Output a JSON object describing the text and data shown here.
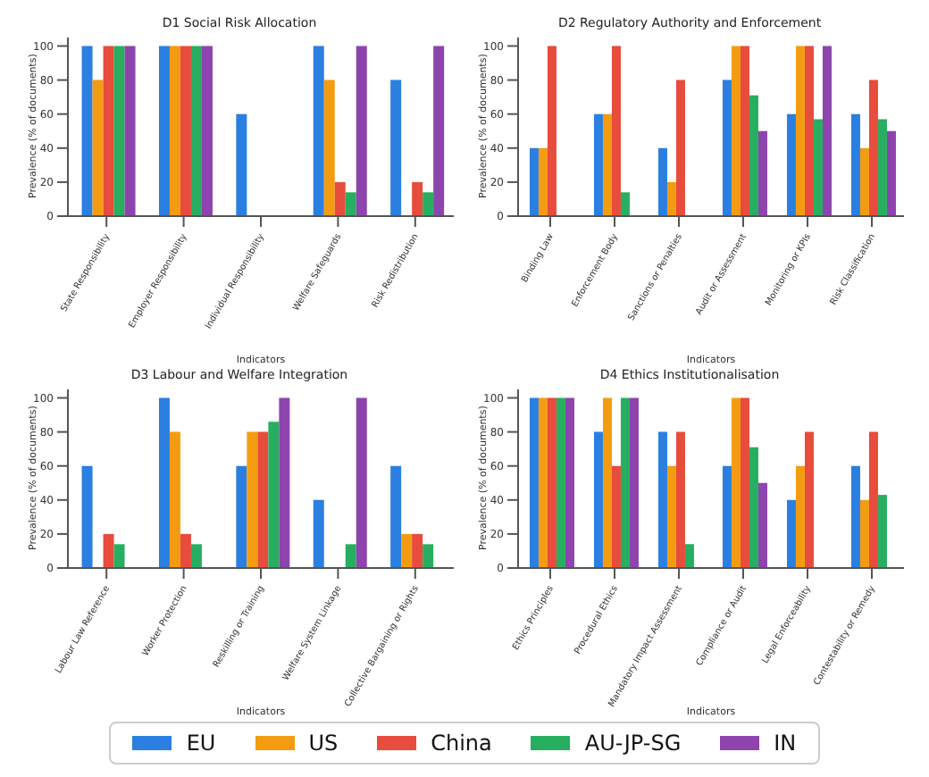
{
  "chart_data": [
    {
      "type": "bar",
      "title": "D1 Social Risk Allocation",
      "xlabel": "Indicators",
      "ylabel": "Prevalence (% of documents)",
      "categories": [
        "State Responsibility",
        "Employer Responsibility",
        "Individual Responsibility",
        "Welfare Safeguards",
        "Risk Redistribution"
      ],
      "series": [
        {
          "name": "EU",
          "color": "#2a7fe0",
          "values": [
            100,
            100,
            60,
            100,
            80
          ]
        },
        {
          "name": "US",
          "color": "#f39c12",
          "values": [
            80,
            100,
            0,
            80,
            0
          ]
        },
        {
          "name": "China",
          "color": "#e74c3c",
          "values": [
            100,
            100,
            0,
            20,
            20
          ]
        },
        {
          "name": "AU-JP-SG",
          "color": "#27ae60",
          "values": [
            100,
            100,
            0,
            14,
            14
          ]
        },
        {
          "name": "IN",
          "color": "#8e44ad",
          "values": [
            100,
            100,
            0,
            100,
            100
          ]
        }
      ],
      "ylim": [
        0,
        105
      ],
      "yticks": [
        0,
        20,
        40,
        60,
        80,
        100
      ],
      "legend": "bottom"
    },
    {
      "type": "bar",
      "title": "D2 Regulatory Authority and Enforcement",
      "xlabel": "Indicators",
      "ylabel": "Prevalence (% of documents)",
      "categories": [
        "Binding Law",
        "Enforcement Body",
        "Sanctions or Penalties",
        "Audit or Assessment",
        "Monitoring or KPIs",
        "Risk Classification"
      ],
      "series": [
        {
          "color": "#2a7fe0",
          "values": [
            40,
            60,
            40,
            80,
            60,
            60
          ]
        },
        {
          "color": "#f39c12",
          "values": [
            40,
            60,
            20,
            100,
            100,
            40
          ]
        },
        {
          "color": "#e74c3c",
          "values": [
            100,
            100,
            80,
            100,
            100,
            80
          ]
        },
        {
          "color": "#27ae60",
          "values": [
            0,
            14,
            0,
            71,
            57,
            57
          ]
        },
        {
          "color": "#8e44ad",
          "values": [
            0,
            0,
            0,
            50,
            100,
            50
          ]
        }
      ],
      "ylim": [
        0,
        105
      ],
      "yticks": [
        0,
        20,
        40,
        60,
        80,
        100
      ]
    },
    {
      "type": "bar",
      "title": "D3 Labour and Welfare Integration",
      "xlabel": "Indicators",
      "ylabel": "Prevalence (% of documents)",
      "categories": [
        "Labour Law Reference",
        "Worker Protection",
        "Reskilling or Training",
        "Welfare System Linkage",
        "Collective Bargaining or Rights"
      ],
      "series": [
        {
          "color": "#2a7fe0",
          "values": [
            60,
            100,
            60,
            40,
            60
          ]
        },
        {
          "color": "#f39c12",
          "values": [
            0,
            80,
            80,
            0,
            20
          ]
        },
        {
          "color": "#e74c3c",
          "values": [
            20,
            20,
            80,
            0,
            20
          ]
        },
        {
          "color": "#27ae60",
          "values": [
            14,
            14,
            86,
            14,
            14
          ]
        },
        {
          "color": "#8e44ad",
          "values": [
            0,
            0,
            100,
            100,
            0
          ]
        }
      ],
      "ylim": [
        0,
        105
      ],
      "yticks": [
        0,
        20,
        40,
        60,
        80,
        100
      ]
    },
    {
      "type": "bar",
      "title": "D4 Ethics Institutionalisation",
      "xlabel": "Indicators",
      "ylabel": "Prevalence (% of documents)",
      "categories": [
        "Ethics Principles",
        "Procedural Ethics",
        "Mandatory Impact Assessment",
        "Compliance or Audit",
        "Legal Enforceability",
        "Contestability or Remedy"
      ],
      "series": [
        {
          "color": "#2a7fe0",
          "values": [
            100,
            80,
            80,
            60,
            40,
            60
          ]
        },
        {
          "color": "#f39c12",
          "values": [
            100,
            100,
            60,
            100,
            60,
            40
          ]
        },
        {
          "color": "#e74c3c",
          "values": [
            100,
            60,
            80,
            100,
            80,
            80
          ]
        },
        {
          "color": "#27ae60",
          "values": [
            100,
            100,
            14,
            71,
            0,
            43
          ]
        },
        {
          "color": "#8e44ad",
          "values": [
            100,
            100,
            0,
            50,
            0,
            0
          ]
        }
      ],
      "ylim": [
        0,
        105
      ],
      "yticks": [
        0,
        20,
        40,
        60,
        80,
        100
      ]
    }
  ]
}
